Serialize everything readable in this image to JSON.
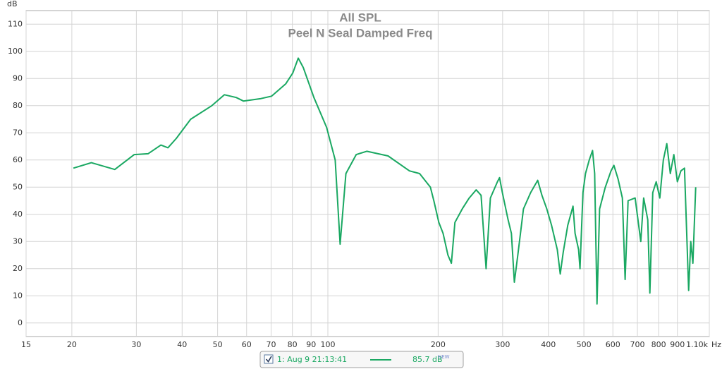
{
  "chart_data": {
    "type": "line",
    "title": "All SPL",
    "subtitle": "Peel N Seal Damped Freq",
    "y_label": "dB",
    "x_label": "Hz",
    "log_x": true,
    "grid": true,
    "legend": "bottom",
    "legend_value": "85.7 dB",
    "legend_badge": "NEW",
    "xlim": [
      15,
      1100
    ],
    "ylim": [
      -5,
      115
    ],
    "xticks": [
      15,
      20,
      30,
      40,
      50,
      60,
      70,
      80,
      90,
      100,
      200,
      300,
      400,
      500,
      600,
      700,
      800,
      900,
      {
        "value": 1100,
        "label": "1.10k"
      }
    ],
    "yticks": [
      0,
      10,
      20,
      30,
      40,
      50,
      60,
      70,
      80,
      90,
      100,
      110
    ],
    "x": [
      20.2,
      22.6,
      26.2,
      29.6,
      32.3,
      35.0,
      36.6,
      38.6,
      42.2,
      48.2,
      52.2,
      56.2,
      58.8,
      65.7,
      70.2,
      76.7,
      80.2,
      83.0,
      85.7,
      91.6,
      99.2,
      104.7,
      108,
      112,
      119.5,
      127.7,
      146,
      167,
      178,
      190.5,
      194.7,
      200.9,
      206.3,
      212.7,
      217.4,
      222.3,
      232.7,
      243.2,
      254,
      262,
      270.4,
      277.8,
      290.4,
      294.3,
      299.5,
      310.5,
      317,
      323,
      330,
      342,
      357.8,
      374,
      384,
      396,
      408,
      423,
      431,
      439,
      452,
      467,
      473,
      483.6,
      488,
      497,
      505,
      517,
      528,
      535,
      543,
      552,
      572,
      593,
      604,
      620,
      637,
      648,
      660,
      690,
      715,
      728,
      747,
      757,
      771,
      788,
      806,
      824,
      842,
      861,
      880,
      900,
      920,
      941,
      966,
      979,
      992,
      1010
    ],
    "series": [
      {
        "name": "1: Aug 9 21:13:41",
        "color": "#1aa862",
        "values": [
          57,
          59,
          56.5,
          62,
          62.3,
          65.5,
          64.5,
          68,
          75,
          80,
          84,
          83,
          81.7,
          82.6,
          83.5,
          88,
          92,
          97.5,
          94,
          83,
          72,
          60,
          29,
          55,
          62,
          63.2,
          61.5,
          56,
          55,
          50,
          45,
          37,
          33,
          25,
          22,
          37,
          42,
          46,
          49,
          47,
          20,
          46,
          52,
          53.5,
          48,
          38,
          33,
          15,
          25,
          42,
          48,
          52.5,
          47,
          42,
          36,
          27,
          18,
          26,
          36,
          43,
          33,
          27,
          20,
          48,
          55,
          60,
          63.5,
          55,
          7,
          42,
          50,
          56,
          58,
          53,
          46,
          16,
          45,
          46,
          30,
          46,
          38,
          11,
          48,
          52,
          46,
          60,
          66,
          55,
          62,
          52,
          56,
          57,
          12,
          30,
          22,
          50
        ]
      }
    ]
  }
}
